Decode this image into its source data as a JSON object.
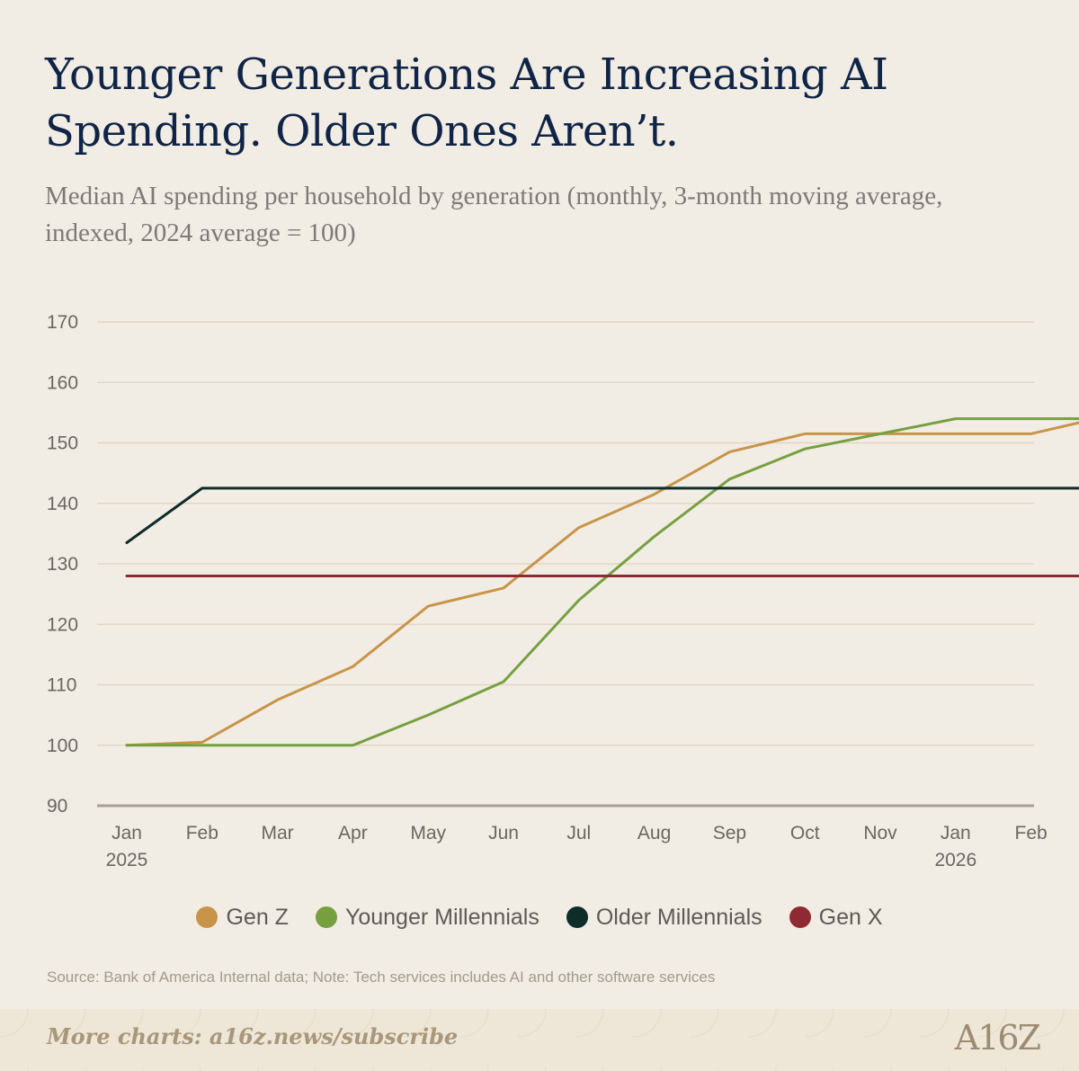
{
  "chart_data": {
    "type": "line",
    "title": "Younger Generations Are Increasing AI Spending. Older Ones Aren’t.",
    "subtitle": "Median AI spending per household by generation (monthly, 3-month moving average, indexed, 2024 average = 100)",
    "x_labels": [
      {
        "month": "Jan",
        "year": "2025"
      },
      {
        "month": "Feb",
        "year": ""
      },
      {
        "month": "Mar",
        "year": ""
      },
      {
        "month": "Apr",
        "year": ""
      },
      {
        "month": "May",
        "year": ""
      },
      {
        "month": "Jun",
        "year": ""
      },
      {
        "month": "Jul",
        "year": ""
      },
      {
        "month": "Aug",
        "year": ""
      },
      {
        "month": "Sep",
        "year": ""
      },
      {
        "month": "Oct",
        "year": ""
      },
      {
        "month": "Nov",
        "year": ""
      },
      {
        "month": "Jan",
        "year": "2026"
      },
      {
        "month": "Feb",
        "year": ""
      }
    ],
    "ylim": [
      90,
      170
    ],
    "yticks": [
      90,
      100,
      110,
      120,
      130,
      140,
      150,
      160,
      170
    ],
    "grid": true,
    "legend_position": "bottom",
    "series": [
      {
        "name": "Gen Z",
        "color": "#c8944a",
        "points": [
          [
            0,
            100
          ],
          [
            1,
            100.5
          ],
          [
            2,
            107.5
          ],
          [
            3,
            113
          ],
          [
            4,
            123
          ],
          [
            5,
            126
          ],
          [
            6,
            136
          ],
          [
            7,
            141.5
          ],
          [
            8,
            148.5
          ],
          [
            9,
            151.5
          ],
          [
            10,
            151.5
          ],
          [
            11,
            151.5
          ],
          [
            12,
            151.5
          ],
          [
            12.87,
            154
          ]
        ]
      },
      {
        "name": "Younger Millennials",
        "color": "#76a040",
        "points": [
          [
            0,
            100
          ],
          [
            1,
            100
          ],
          [
            2,
            100
          ],
          [
            3,
            100
          ],
          [
            4,
            105
          ],
          [
            5,
            110.5
          ],
          [
            6,
            124
          ],
          [
            7,
            134.5
          ],
          [
            8,
            144
          ],
          [
            9,
            149
          ],
          [
            10,
            151.5
          ],
          [
            11,
            154
          ],
          [
            12,
            154
          ],
          [
            12.87,
            154
          ]
        ]
      },
      {
        "name": "Older Millennials",
        "color": "#0e2c28",
        "points": [
          [
            0,
            133.5
          ],
          [
            1,
            142.5
          ],
          [
            12.87,
            142.5
          ]
        ]
      },
      {
        "name": "Gen X",
        "color": "#8f2a33",
        "points": [
          [
            0,
            128
          ],
          [
            12.87,
            128
          ]
        ]
      }
    ]
  },
  "source": "Source: Bank of America Internal data; Note: Tech services includes AI and other software services",
  "footer": {
    "cta": "More charts: a16z.news/subscribe",
    "logo": "A16Z"
  }
}
